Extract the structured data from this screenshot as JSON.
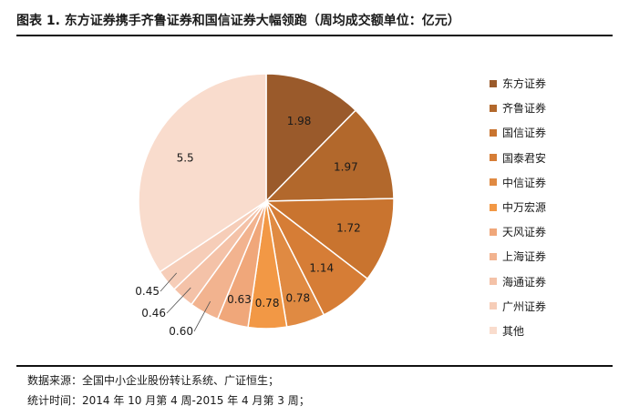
{
  "title": "图表 1. 东方证券携手齐鲁证券和国信证券大幅领跑（周均成交额单位：亿元）",
  "source_line": "数据来源：全国中小企业股份转让系统、广证恒生；",
  "period_line": "统计时间：2014 年 10 月第 4 周-2015 年 4 月第 3 周；",
  "chart_data": {
    "type": "pie",
    "title": "",
    "legend_position": "right",
    "slices": [
      {
        "label": "东方证券",
        "value": 1.98,
        "color": "#9a5a2b"
      },
      {
        "label": "齐鲁证券",
        "value": 1.97,
        "color": "#b2682c"
      },
      {
        "label": "国信证券",
        "value": 1.72,
        "color": "#c9742f"
      },
      {
        "label": "国泰君安",
        "value": 1.14,
        "color": "#d67d36"
      },
      {
        "label": "中信证券",
        "value": 0.78,
        "color": "#e08a42"
      },
      {
        "label": "中万宏源",
        "value": 0.78,
        "color": "#f29845"
      },
      {
        "label": "天风证券",
        "value": 0.63,
        "color": "#f0a77a"
      },
      {
        "label": "上海证券",
        "value": 0.6,
        "color": "#f2b38f"
      },
      {
        "label": "海通证券",
        "value": 0.46,
        "color": "#f4c2a8"
      },
      {
        "label": "广州证券",
        "value": 0.45,
        "color": "#f6cdb8"
      },
      {
        "label": "其他",
        "value": 5.5,
        "color": "#f9dccd"
      }
    ]
  }
}
